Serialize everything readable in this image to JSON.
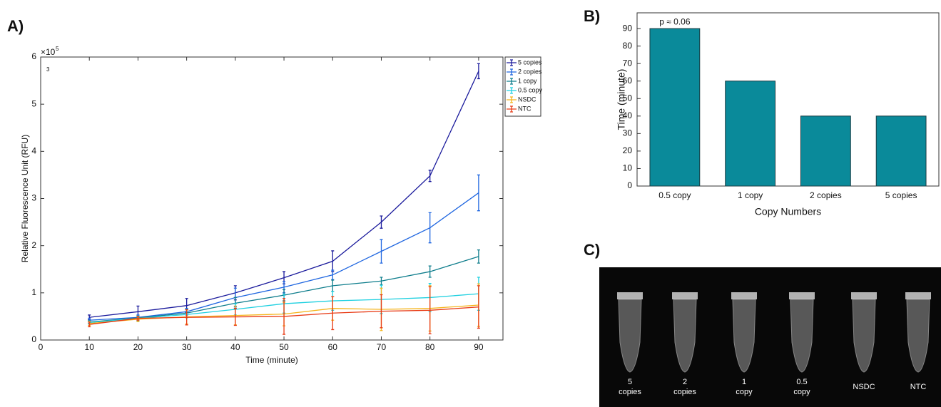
{
  "chart_data": [
    {
      "type": "line",
      "panel_label": "A)",
      "x_label": "Time (minute)",
      "y_label": "Relative Fluorescence Unit (RFU)",
      "y_multiplier": "×10",
      "y_exponent": "5",
      "annotation": "3",
      "x": [
        10,
        20,
        30,
        40,
        50,
        60,
        70,
        80,
        90
      ],
      "xlim": [
        0,
        95
      ],
      "xticks": [
        0,
        10,
        20,
        30,
        40,
        50,
        60,
        70,
        80,
        90
      ],
      "ylim": [
        0,
        6
      ],
      "yticks": [
        0,
        1,
        2,
        3,
        4,
        5,
        6
      ],
      "legend": "outside-right",
      "series": [
        {
          "name": "5 copies",
          "color": "#1a1a9c",
          "values": [
            0.48,
            0.6,
            0.73,
            1.0,
            1.32,
            1.67,
            2.5,
            3.48,
            5.7
          ],
          "errors": [
            0.05,
            0.12,
            0.15,
            0.15,
            0.13,
            0.22,
            0.13,
            0.12,
            0.16
          ]
        },
        {
          "name": "2 copies",
          "color": "#1f66e0",
          "values": [
            0.42,
            0.48,
            0.6,
            0.9,
            1.12,
            1.38,
            1.88,
            2.38,
            3.12
          ],
          "errors": [
            0.04,
            0.05,
            0.07,
            0.2,
            0.12,
            0.1,
            0.25,
            0.32,
            0.38
          ]
        },
        {
          "name": "1 copy",
          "color": "#0e7d8c",
          "values": [
            0.38,
            0.47,
            0.57,
            0.78,
            0.95,
            1.15,
            1.25,
            1.45,
            1.77
          ],
          "errors": [
            0.03,
            0.04,
            0.08,
            0.12,
            0.12,
            0.12,
            0.08,
            0.12,
            0.14
          ]
        },
        {
          "name": "0.5 copy",
          "color": "#1fd0e0",
          "values": [
            0.37,
            0.46,
            0.54,
            0.65,
            0.77,
            0.83,
            0.86,
            0.9,
            0.98
          ],
          "errors": [
            0.03,
            0.05,
            0.07,
            0.12,
            0.2,
            0.2,
            0.3,
            0.3,
            0.35
          ]
        },
        {
          "name": "NSDC",
          "color": "#f5b41a",
          "values": [
            0.35,
            0.44,
            0.49,
            0.52,
            0.55,
            0.67,
            0.65,
            0.67,
            0.74
          ],
          "errors": [
            0.04,
            0.05,
            0.15,
            0.2,
            0.25,
            0.25,
            0.45,
            0.48,
            0.45
          ]
        },
        {
          "name": "NTC",
          "color": "#e83a14",
          "values": [
            0.33,
            0.46,
            0.48,
            0.49,
            0.5,
            0.57,
            0.61,
            0.63,
            0.7
          ],
          "errors": [
            0.05,
            0.04,
            0.16,
            0.18,
            0.38,
            0.35,
            0.35,
            0.5,
            0.45
          ]
        }
      ]
    },
    {
      "type": "bar",
      "panel_label": "B)",
      "x_label": "Copy Numbers",
      "y_label": "Time (minute)",
      "annotation": "p ≈ 0.06",
      "categories": [
        "0.5 copy",
        "1 copy",
        "2 copies",
        "5 copies"
      ],
      "values": [
        90,
        60,
        40,
        40
      ],
      "color": "#0a8a9a",
      "ylim": [
        0,
        99
      ],
      "yticks": [
        0,
        10,
        20,
        30,
        40,
        50,
        60,
        70,
        80,
        90
      ]
    }
  ],
  "photo": {
    "panel_label": "C)",
    "tubes": [
      [
        "5",
        "copies"
      ],
      [
        "2",
        "copies"
      ],
      [
        "1",
        "copy"
      ],
      [
        "0.5",
        "copy"
      ],
      [
        "NSDC"
      ],
      [
        "NTC"
      ]
    ]
  }
}
